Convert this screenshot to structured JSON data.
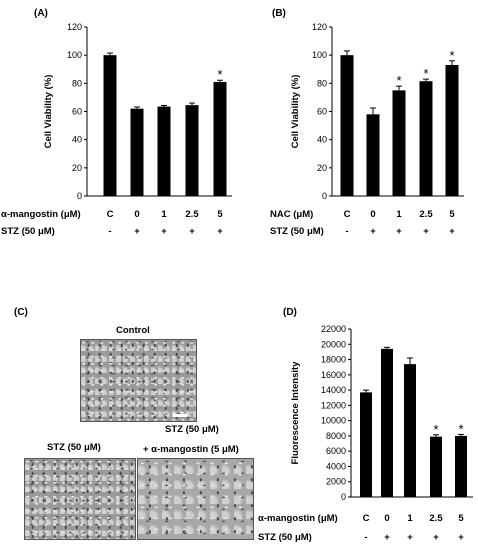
{
  "panels": {
    "a": {
      "label": "(A)"
    },
    "b": {
      "label": "(B)"
    },
    "c": {
      "label": "(C)",
      "control": "Control",
      "stz_top": "STZ (50 μM)",
      "stz_left": "STZ (50 μM)",
      "stz_right": "+ α-mangostin (5 μM)"
    },
    "d": {
      "label": "(D)"
    }
  },
  "chart_data": [
    {
      "type": "bar",
      "panel": "(A)",
      "ylabel": "Cell Viability (%)",
      "ylim": [
        0,
        120
      ],
      "yticks": [
        0,
        20,
        40,
        60,
        80,
        100,
        120
      ],
      "categories": [
        "C",
        "0",
        "1",
        "2.5",
        "5"
      ],
      "values": [
        100,
        62,
        63.5,
        64.5,
        81
      ],
      "errors": [
        1.5,
        1.2,
        0.8,
        1.5,
        1.2
      ],
      "significance": [
        "",
        "",
        "",
        "",
        "*"
      ],
      "rows": [
        {
          "label": "α-mangostin  (μM)",
          "values": [
            "C",
            "0",
            "1",
            "2.5",
            "5"
          ]
        },
        {
          "label": "STZ (50 μM)",
          "values": [
            "-",
            "+",
            "+",
            "+",
            "+"
          ]
        }
      ],
      "colors": {
        "bar": "#000000"
      }
    },
    {
      "type": "bar",
      "panel": "(B)",
      "ylabel": "Cell Viability (%)",
      "ylim": [
        0,
        120
      ],
      "yticks": [
        0,
        20,
        40,
        60,
        80,
        100,
        120
      ],
      "categories": [
        "C",
        "0",
        "1",
        "2.5",
        "5"
      ],
      "values": [
        100,
        58,
        75,
        81.5,
        93
      ],
      "errors": [
        3,
        4.5,
        3,
        1.5,
        3
      ],
      "significance": [
        "",
        "",
        "*",
        "*",
        "*"
      ],
      "rows": [
        {
          "label": "NAC (μM)",
          "values": [
            "C",
            "0",
            "1",
            "2.5",
            "5"
          ]
        },
        {
          "label": "STZ (50 μM)",
          "values": [
            "-",
            "+",
            "+",
            "+",
            "+"
          ]
        }
      ],
      "colors": {
        "bar": "#000000"
      }
    },
    {
      "type": "bar",
      "panel": "(D)",
      "ylabel": "Fluorescence Intensity",
      "ylim": [
        0,
        22000
      ],
      "yticks": [
        0,
        2000,
        4000,
        6000,
        8000,
        10000,
        12000,
        14000,
        16000,
        18000,
        20000,
        22000
      ],
      "categories": [
        "C",
        "0",
        "1",
        "2.5",
        "5"
      ],
      "values": [
        13700,
        19400,
        17400,
        7900,
        8000
      ],
      "errors": [
        300,
        200,
        800,
        250,
        200
      ],
      "significance": [
        "",
        "",
        "",
        "*",
        "*"
      ],
      "rows": [
        {
          "label": "α-mangostin  (μM)",
          "values": [
            "C",
            "0",
            "1",
            "2.5",
            "5"
          ]
        },
        {
          "label": "STZ (50 μM)",
          "values": [
            "-",
            "+",
            "+",
            "+",
            "+"
          ]
        }
      ],
      "colors": {
        "bar": "#000000"
      }
    }
  ]
}
